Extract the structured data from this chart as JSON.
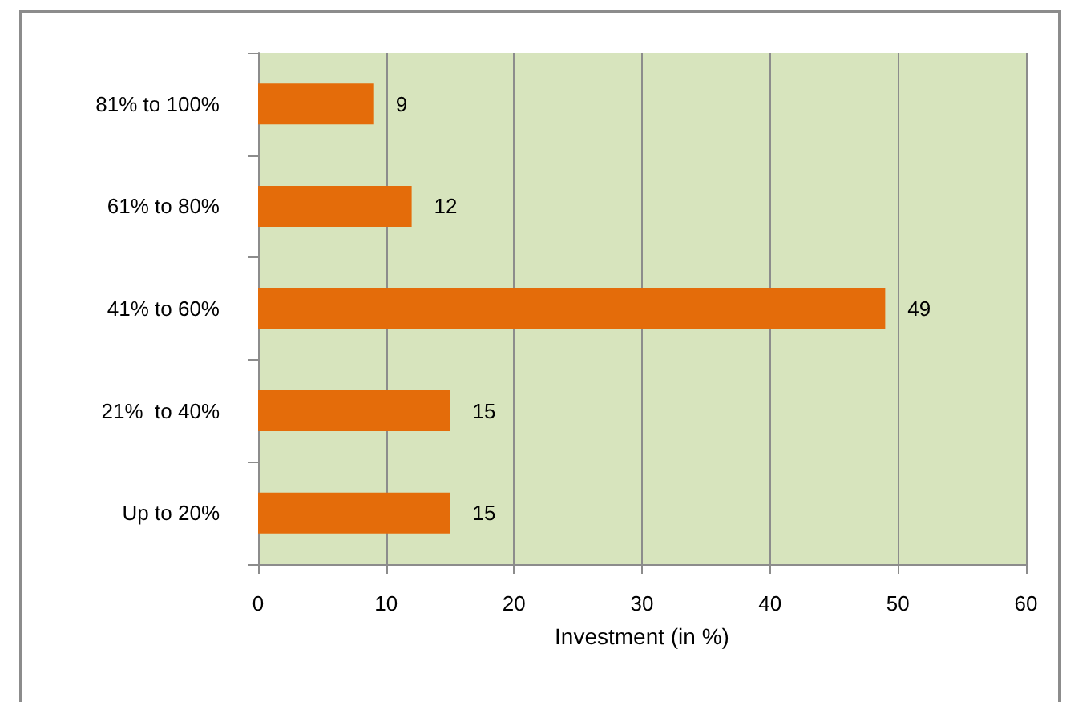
{
  "chart_data": {
    "type": "bar",
    "orientation": "horizontal",
    "categories": [
      "81% to 100%",
      "61% to 80%",
      "41% to 60%",
      "21%  to 40%",
      "Up to 20%"
    ],
    "values": [
      9,
      12,
      49,
      15,
      15
    ],
    "color": "#e46c0a",
    "xlabel": "Investment (in %)",
    "xlim": [
      0,
      60
    ],
    "xticks": [
      0,
      10,
      20,
      30,
      40,
      50,
      60
    ],
    "grid": "x",
    "data_labels": true
  }
}
